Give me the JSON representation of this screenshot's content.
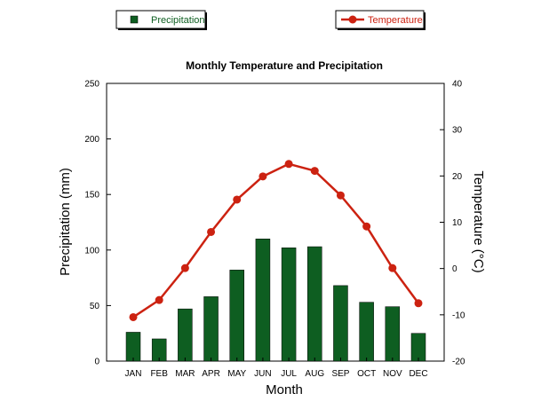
{
  "chart_data": {
    "type": "bar+line",
    "title": "Monthly Temperature and Precipitation",
    "xlabel": "Month",
    "categories": [
      "JAN",
      "FEB",
      "MAR",
      "APR",
      "MAY",
      "JUN",
      "JUL",
      "AUG",
      "SEP",
      "OCT",
      "NOV",
      "DEC"
    ],
    "series": [
      {
        "name": "Precipitation",
        "type": "bar",
        "axis": "left",
        "color": "#0e5e21",
        "values": [
          26,
          20,
          47,
          58,
          82,
          110,
          102,
          103,
          68,
          53,
          49,
          25
        ]
      },
      {
        "name": "Temperature",
        "type": "line",
        "axis": "right",
        "color": "#cc2211",
        "values": [
          -10.5,
          -6.8,
          0.1,
          7.9,
          14.9,
          19.9,
          22.6,
          21.1,
          15.8,
          9.1,
          0.1,
          -7.5
        ]
      }
    ],
    "y_left": {
      "label": "Precipitation (mm)",
      "lim": [
        0,
        250
      ],
      "ticks": [
        0,
        50,
        100,
        150,
        200,
        250
      ]
    },
    "y_right": {
      "label": "Temperature (°C)",
      "lim": [
        -20,
        40
      ],
      "ticks": [
        -20,
        -10,
        0,
        10,
        20,
        30,
        40
      ]
    },
    "grid": false,
    "legend_placement": "top"
  }
}
